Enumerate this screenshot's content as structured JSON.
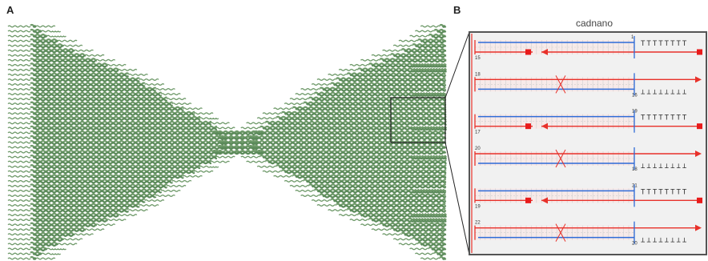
{
  "panel_a": {
    "label": "A",
    "colors": {
      "strand": "#6f9a6a",
      "strand_dark": "#5b8a5a"
    },
    "rows_left": [
      1,
      2,
      3,
      5,
      6,
      8,
      10,
      12,
      14,
      16,
      18,
      20,
      21,
      23,
      24,
      25,
      26,
      28,
      30,
      31,
      33,
      34,
      35,
      36,
      36,
      36,
      35,
      34,
      33,
      31,
      30,
      28,
      26,
      25,
      24,
      23,
      21,
      20,
      18,
      16,
      14,
      12,
      10,
      8,
      6,
      5,
      3,
      2,
      1
    ],
    "rows_right": [
      1,
      2,
      3,
      5,
      6,
      8,
      10,
      12,
      14,
      16,
      18,
      20,
      21,
      23,
      24,
      25,
      26,
      28,
      30,
      31,
      33,
      34,
      35,
      36,
      36,
      36,
      35,
      34,
      33,
      31,
      30,
      28,
      26,
      25,
      24,
      23,
      21,
      20,
      18,
      16,
      14,
      12,
      10,
      8,
      6,
      5,
      3,
      2,
      1
    ]
  },
  "panel_b": {
    "label": "B",
    "title": "cadnano",
    "colors": {
      "scaffold": "#e8312a",
      "staple": "#2f6bd8",
      "endcap": "#e81b1b",
      "panel_bg": "#f1f1f1",
      "border": "#555555"
    },
    "pairs": [
      {
        "top": "1",
        "bottom": "15",
        "right_top": "",
        "right_bottom": "",
        "tees": "TTTTTTTT",
        "tee_side": "top",
        "crossover": false
      },
      {
        "top": "18",
        "bottom": "",
        "right_top": "",
        "right_bottom": "16",
        "tees": "⊥⊥⊥⊥⊥⊥⊥⊥",
        "tee_side": "bottom",
        "crossover": true
      },
      {
        "top": "",
        "bottom": "17",
        "right_top": "19",
        "right_bottom": "",
        "tees": "TTTTTTTT",
        "tee_side": "top",
        "crossover": false
      },
      {
        "top": "20",
        "bottom": "",
        "right_top": "",
        "right_bottom": "18",
        "tees": "⊥⊥⊥⊥⊥⊥⊥⊥",
        "tee_side": "bottom",
        "crossover": true
      },
      {
        "top": "",
        "bottom": "19",
        "right_top": "21",
        "right_bottom": "",
        "tees": "TTTTTTTT",
        "tee_side": "top",
        "crossover": false
      },
      {
        "top": "22",
        "bottom": "",
        "right_top": "",
        "right_bottom": "20",
        "tees": "⊥⊥⊥⊥⊥⊥⊥⊥",
        "tee_side": "bottom",
        "crossover": true
      }
    ]
  }
}
